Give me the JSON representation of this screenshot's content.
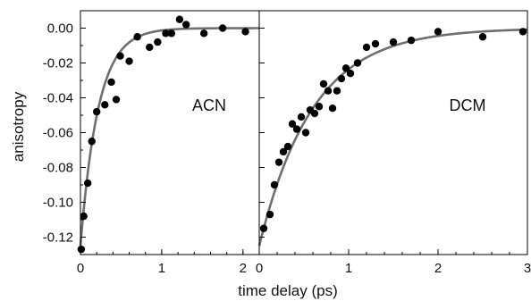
{
  "chart_data": {
    "type": "scatter",
    "ylabel": "anisotropy",
    "xlabel": "time delay (ps)",
    "ylim": [
      -0.13,
      0.01
    ],
    "yticks": [
      0.0,
      -0.02,
      -0.04,
      -0.06,
      -0.08,
      -0.1,
      -0.12
    ],
    "ytick_labels": [
      "0.00",
      "-0.02",
      "-0.04",
      "-0.06",
      "-0.08",
      "-0.10",
      "-0.12"
    ],
    "grid": false,
    "marker_color": "#000000",
    "fit_color": "#6f6f6f",
    "panels": [
      {
        "label": "ACN",
        "xlim": [
          0,
          2.2
        ],
        "xticks": [
          0,
          1,
          2
        ],
        "xtick_labels": [
          "0",
          "1",
          "2"
        ],
        "points": [
          {
            "x": 0.01,
            "y": -0.127
          },
          {
            "x": 0.04,
            "y": -0.108
          },
          {
            "x": 0.09,
            "y": -0.089
          },
          {
            "x": 0.14,
            "y": -0.065
          },
          {
            "x": 0.2,
            "y": -0.048
          },
          {
            "x": 0.3,
            "y": -0.044
          },
          {
            "x": 0.38,
            "y": -0.031
          },
          {
            "x": 0.44,
            "y": -0.041
          },
          {
            "x": 0.49,
            "y": -0.016
          },
          {
            "x": 0.6,
            "y": -0.019
          },
          {
            "x": 0.7,
            "y": -0.005
          },
          {
            "x": 0.85,
            "y": -0.011
          },
          {
            "x": 0.95,
            "y": -0.008
          },
          {
            "x": 1.05,
            "y": -0.003
          },
          {
            "x": 1.12,
            "y": -0.003
          },
          {
            "x": 1.22,
            "y": 0.005
          },
          {
            "x": 1.3,
            "y": 0.002
          },
          {
            "x": 1.52,
            "y": -0.003
          },
          {
            "x": 1.75,
            "y": 0.0
          },
          {
            "x": 2.03,
            "y": -0.002
          }
        ],
        "fit": {
          "amplitude": -0.125,
          "tau": 0.22
        }
      },
      {
        "label": "DCM",
        "xlim": [
          0,
          3.0
        ],
        "xticks": [
          0,
          1,
          2,
          3
        ],
        "xtick_labels": [
          "0",
          "1",
          "2",
          "3"
        ],
        "points": [
          {
            "x": 0.05,
            "y": -0.115
          },
          {
            "x": 0.12,
            "y": -0.107
          },
          {
            "x": 0.17,
            "y": -0.09
          },
          {
            "x": 0.22,
            "y": -0.077
          },
          {
            "x": 0.27,
            "y": -0.071
          },
          {
            "x": 0.32,
            "y": -0.068
          },
          {
            "x": 0.37,
            "y": -0.055
          },
          {
            "x": 0.42,
            "y": -0.058
          },
          {
            "x": 0.47,
            "y": -0.051
          },
          {
            "x": 0.52,
            "y": -0.06
          },
          {
            "x": 0.57,
            "y": -0.047
          },
          {
            "x": 0.62,
            "y": -0.049
          },
          {
            "x": 0.67,
            "y": -0.045
          },
          {
            "x": 0.72,
            "y": -0.032
          },
          {
            "x": 0.77,
            "y": -0.036
          },
          {
            "x": 0.82,
            "y": -0.046
          },
          {
            "x": 0.87,
            "y": -0.036
          },
          {
            "x": 0.92,
            "y": -0.029
          },
          {
            "x": 0.97,
            "y": -0.023
          },
          {
            "x": 1.02,
            "y": -0.026
          },
          {
            "x": 1.1,
            "y": -0.02
          },
          {
            "x": 1.2,
            "y": -0.011
          },
          {
            "x": 1.3,
            "y": -0.009
          },
          {
            "x": 1.5,
            "y": -0.008
          },
          {
            "x": 1.7,
            "y": -0.007
          },
          {
            "x": 2.0,
            "y": -0.002
          },
          {
            "x": 2.5,
            "y": -0.005
          },
          {
            "x": 2.95,
            "y": -0.002
          }
        ],
        "fit": {
          "amplitude": -0.125,
          "tau": 0.6
        }
      }
    ]
  }
}
